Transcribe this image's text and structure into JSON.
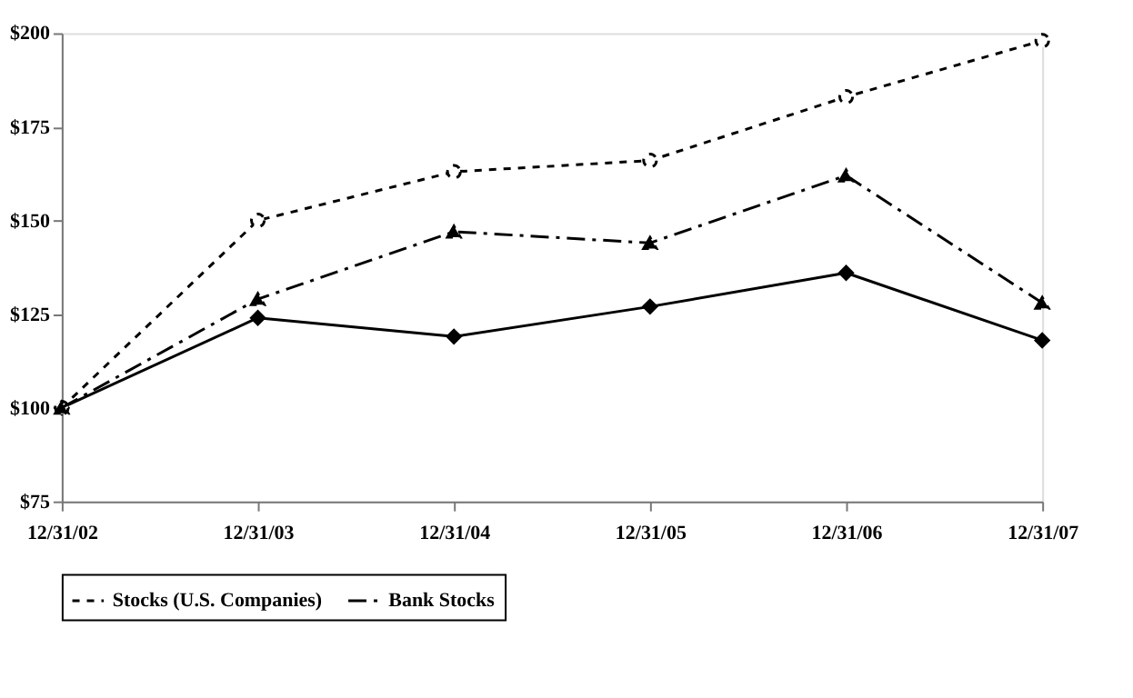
{
  "chart_data": {
    "type": "line",
    "categories": [
      "12/31/02",
      "12/31/03",
      "12/31/04",
      "12/31/05",
      "12/31/06",
      "12/31/07"
    ],
    "ylim": [
      75,
      200
    ],
    "yticks": [
      {
        "value": 75,
        "label": "$75"
      },
      {
        "value": 100,
        "label": "$100"
      },
      {
        "value": 125,
        "label": "$125"
      },
      {
        "value": 150,
        "label": "$150"
      },
      {
        "value": 175,
        "label": "$175"
      },
      {
        "value": 200,
        "label": "$200"
      }
    ],
    "grid": false,
    "legend": "bottom",
    "series": [
      {
        "color": "#000000",
        "marker": "diamond",
        "line_style": "solid",
        "values": [
          100,
          124,
          119,
          127,
          136,
          118
        ]
      },
      {
        "name": "Stocks (U.S. Companies)",
        "color": "#000000",
        "marker": "circle",
        "line_style": "dotted",
        "values": [
          100,
          150,
          163,
          166,
          183,
          198
        ]
      },
      {
        "name": "Bank Stocks",
        "color": "#000000",
        "marker": "triangle",
        "line_style": "dashed",
        "values": [
          100,
          129,
          147,
          144,
          162,
          128
        ]
      }
    ]
  }
}
